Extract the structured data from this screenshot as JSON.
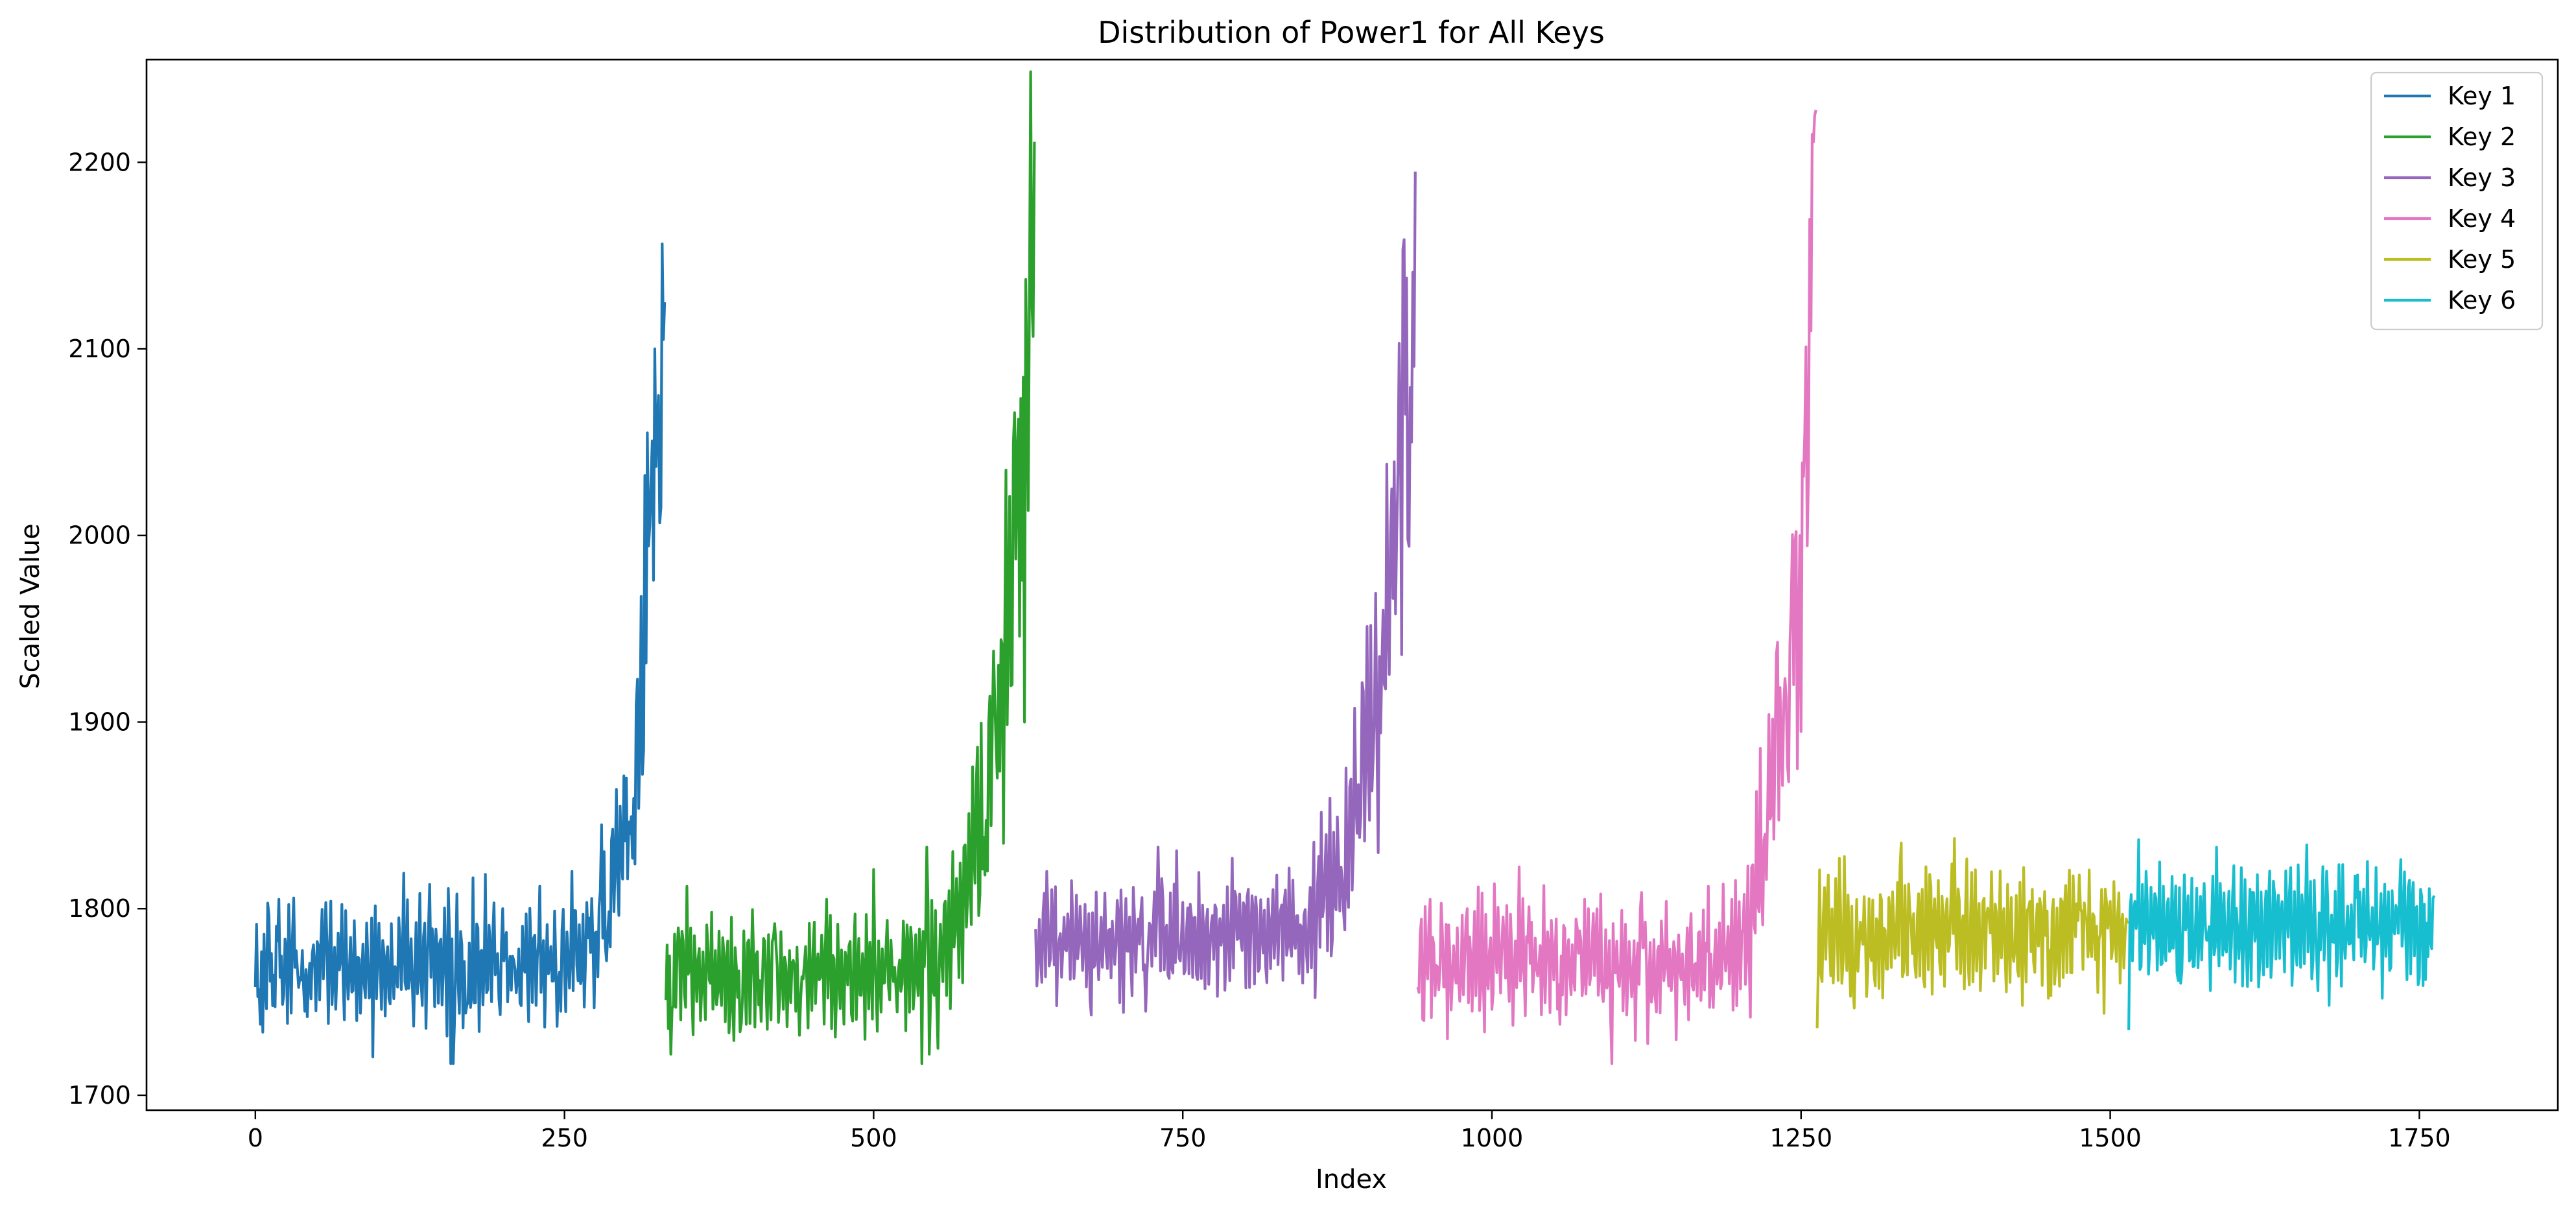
{
  "chart_data": {
    "type": "line",
    "title": "Distribution of Power1 for All Keys",
    "xlabel": "Index",
    "ylabel": "Scaled Value",
    "xlim": [
      -88,
      1862
    ],
    "ylim": [
      1692,
      2255
    ],
    "xticks": [
      0,
      250,
      500,
      750,
      1000,
      1250,
      1500,
      1750
    ],
    "yticks": [
      1700,
      1800,
      1900,
      2000,
      2100,
      2200
    ],
    "grid": false,
    "legend_position": "top-right",
    "series": [
      {
        "name": "Key 1",
        "color": "#1f77b4",
        "x_start": 0,
        "x_end": 331,
        "base_level": 1770,
        "noise_amplitude": 24,
        "rise_onset_index": 230,
        "rise_peak_value": 2125,
        "points": [
          [
            0,
            1758
          ],
          [
            4,
            1738
          ],
          [
            10,
            1803
          ],
          [
            14,
            1748
          ],
          [
            19,
            1805
          ],
          [
            40,
            1745
          ],
          [
            61,
            1804
          ],
          [
            82,
            1740
          ],
          [
            108,
            1752
          ],
          [
            120,
            1819
          ],
          [
            128,
            1737
          ],
          [
            141,
            1813
          ],
          [
            160,
            1717
          ],
          [
            170,
            1744
          ],
          [
            200,
            1800
          ],
          [
            215,
            1748
          ],
          [
            230,
            1812
          ],
          [
            245,
            1762
          ],
          [
            256,
            1820
          ],
          [
            270,
            1795
          ],
          [
            280,
            1845
          ],
          [
            285,
            1787
          ],
          [
            295,
            1855
          ],
          [
            300,
            1870
          ],
          [
            305,
            1827
          ],
          [
            309,
            1923
          ],
          [
            313,
            1872
          ],
          [
            317,
            2055
          ],
          [
            320,
            2030
          ],
          [
            323,
            2100
          ],
          [
            326,
            2075
          ],
          [
            328,
            2015
          ],
          [
            330,
            2105
          ],
          [
            331,
            2125
          ]
        ]
      },
      {
        "name": "Key 2",
        "color": "#2ca02c",
        "x_start": 332,
        "x_end": 630,
        "base_level": 1765,
        "noise_amplitude": 24,
        "rise_onset_index": 500,
        "rise_peak_value": 2211,
        "points": [
          [
            332,
            1751
          ],
          [
            336,
            1722
          ],
          [
            341,
            1776
          ],
          [
            360,
            1740
          ],
          [
            375,
            1788
          ],
          [
            392,
            1734
          ],
          [
            420,
            1792
          ],
          [
            447,
            1736
          ],
          [
            462,
            1805
          ],
          [
            480,
            1780
          ],
          [
            493,
            1730
          ],
          [
            500,
            1821
          ],
          [
            508,
            1760
          ],
          [
            525,
            1778
          ],
          [
            543,
            1833
          ],
          [
            558,
            1804
          ],
          [
            573,
            1833
          ],
          [
            590,
            1818
          ],
          [
            600,
            1870
          ],
          [
            605,
            1835
          ],
          [
            612,
            1920
          ],
          [
            618,
            1946
          ],
          [
            620,
            1976
          ],
          [
            622,
            1900
          ],
          [
            624,
            2084
          ],
          [
            626,
            2128
          ],
          [
            628,
            2125
          ],
          [
            630,
            2211
          ]
        ]
      },
      {
        "name": "Key 3",
        "color": "#9467bd",
        "x_start": 631,
        "x_end": 938,
        "base_level": 1785,
        "noise_amplitude": 24,
        "rise_onset_index": 800,
        "rise_peak_value": 2195,
        "points": [
          [
            631,
            1789
          ],
          [
            635,
            1773
          ],
          [
            640,
            1820
          ],
          [
            648,
            1748
          ],
          [
            660,
            1815
          ],
          [
            676,
            1743
          ],
          [
            700,
            1810
          ],
          [
            720,
            1745
          ],
          [
            745,
            1831
          ],
          [
            762,
            1762
          ],
          [
            790,
            1827
          ],
          [
            812,
            1768
          ],
          [
            833,
            1810
          ],
          [
            846,
            1790
          ],
          [
            860,
            1828
          ],
          [
            873,
            1803
          ],
          [
            890,
            1858
          ],
          [
            900,
            1875
          ],
          [
            905,
            1905
          ],
          [
            908,
            1830
          ],
          [
            912,
            1960
          ],
          [
            918,
            2000
          ],
          [
            922,
            1958
          ],
          [
            926,
            2055
          ],
          [
            930,
            2065
          ],
          [
            932,
            1998
          ],
          [
            935,
            2050
          ],
          [
            938,
            2195
          ]
        ]
      },
      {
        "name": "Key 4",
        "color": "#e377c2",
        "x_start": 940,
        "x_end": 1262,
        "base_level": 1770,
        "noise_amplitude": 25,
        "rise_onset_index": 1150,
        "rise_peak_value": 2228,
        "points": [
          [
            940,
            1758
          ],
          [
            945,
            1740
          ],
          [
            950,
            1805
          ],
          [
            962,
            1758
          ],
          [
            980,
            1800
          ],
          [
            1000,
            1746
          ],
          [
            1030,
            1801
          ],
          [
            1055,
            1738
          ],
          [
            1075,
            1805
          ],
          [
            1097,
            1717
          ],
          [
            1120,
            1800
          ],
          [
            1145,
            1756
          ],
          [
            1175,
            1812
          ],
          [
            1198,
            1748
          ],
          [
            1210,
            1822
          ],
          [
            1225,
            1848
          ],
          [
            1235,
            1866
          ],
          [
            1240,
            1868
          ],
          [
            1244,
            1920
          ],
          [
            1247,
            1875
          ],
          [
            1250,
            1895
          ],
          [
            1253,
            2055
          ],
          [
            1256,
            2032
          ],
          [
            1259,
            2215
          ],
          [
            1261,
            2225
          ],
          [
            1262,
            2228
          ]
        ]
      },
      {
        "name": "Key 5",
        "color": "#bcbd22",
        "x_start": 1263,
        "x_end": 1514,
        "base_level": 1788,
        "noise_amplitude": 25,
        "rise_onset_index": null,
        "rise_peak_value": null,
        "points": [
          [
            1263,
            1736
          ],
          [
            1266,
            1765
          ],
          [
            1272,
            1818
          ],
          [
            1281,
            1827
          ],
          [
            1292,
            1760
          ],
          [
            1330,
            1822
          ],
          [
            1350,
            1758
          ],
          [
            1372,
            1824
          ],
          [
            1395,
            1756
          ],
          [
            1430,
            1822
          ],
          [
            1450,
            1752
          ],
          [
            1475,
            1818
          ],
          [
            1490,
            1755
          ],
          [
            1514,
            1792
          ]
        ]
      },
      {
        "name": "Key 6",
        "color": "#17becf",
        "x_start": 1515,
        "x_end": 1762,
        "base_level": 1790,
        "noise_amplitude": 24,
        "rise_onset_index": null,
        "rise_peak_value": null,
        "points": [
          [
            1515,
            1735
          ],
          [
            1518,
            1772
          ],
          [
            1529,
            1820
          ],
          [
            1540,
            1825
          ],
          [
            1557,
            1760
          ],
          [
            1600,
            1823
          ],
          [
            1620,
            1758
          ],
          [
            1646,
            1822
          ],
          [
            1668,
            1756
          ],
          [
            1700,
            1818
          ],
          [
            1720,
            1752
          ],
          [
            1745,
            1814
          ],
          [
            1755,
            1762
          ],
          [
            1762,
            1807
          ]
        ]
      }
    ]
  }
}
